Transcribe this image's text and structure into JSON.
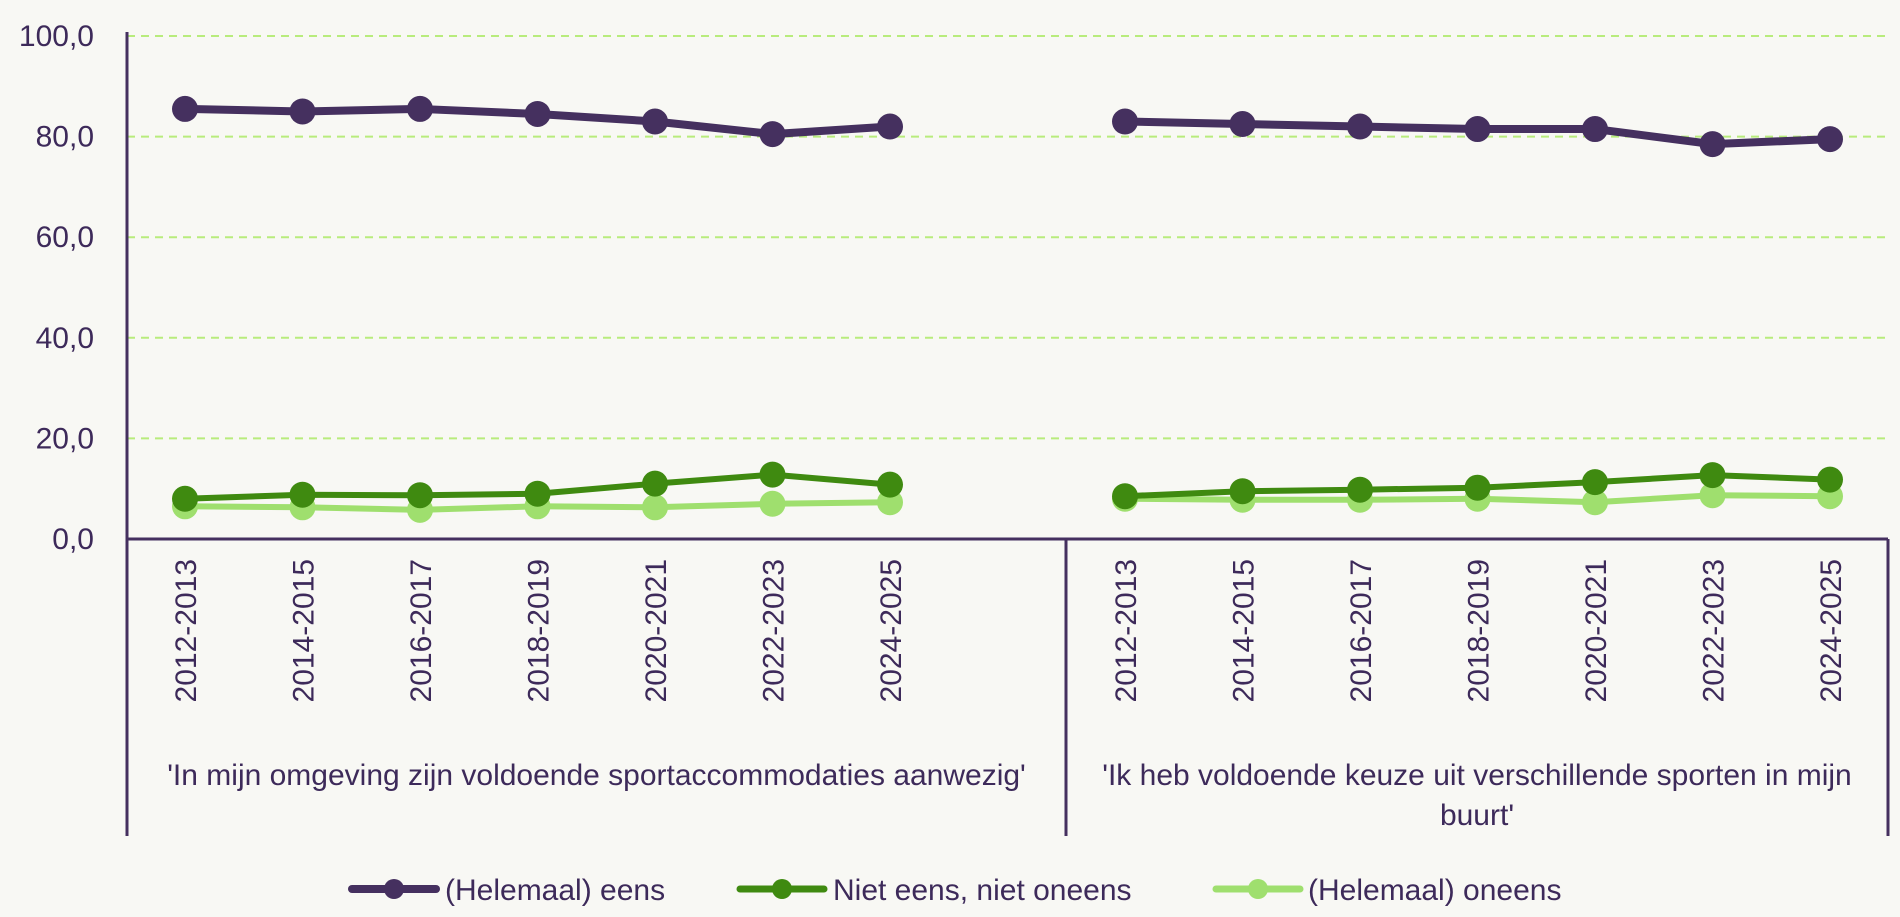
{
  "chart_data": {
    "type": "line",
    "y_axis": {
      "ylim": [
        0,
        100
      ],
      "ticks": [
        0,
        20,
        40,
        60,
        80,
        100
      ],
      "tick_labels": [
        "0,0",
        "20,0",
        "40,0",
        "60,0",
        "80,0",
        "100,0"
      ],
      "grid": true
    },
    "groups": [
      {
        "label": "'In mijn omgeving zijn voldoende sportaccommodaties aanwezig'",
        "label_lines": [
          "'In mijn omgeving zijn voldoende sportaccommodaties aanwezig'"
        ],
        "categories": [
          "2012-2013",
          "2014-2015",
          "2016-2017",
          "2018-2019",
          "2020-2021",
          "2022-2023",
          "2024-2025"
        ],
        "series": [
          {
            "name": "(Helemaal) eens",
            "values": [
              85.5,
              85.0,
              85.5,
              84.5,
              83.0,
              80.5,
              82.0
            ]
          },
          {
            "name": "Niet eens, niet oneens",
            "values": [
              8.0,
              8.8,
              8.7,
              9.0,
              11.0,
              12.8,
              10.8
            ]
          },
          {
            "name": "(Helemaal) oneens",
            "values": [
              6.5,
              6.3,
              5.8,
              6.5,
              6.3,
              7.0,
              7.3
            ]
          }
        ]
      },
      {
        "label": "'Ik heb voldoende keuze uit verschillende sporten in mijn buurt'",
        "label_lines": [
          "'Ik heb voldoende keuze uit verschillende sporten in mijn",
          "buurt'"
        ],
        "categories": [
          "2012-2013",
          "2014-2015",
          "2016-2017",
          "2018-2019",
          "2020-2021",
          "2022-2023",
          "2024-2025"
        ],
        "series": [
          {
            "name": "(Helemaal) eens",
            "values": [
              83.0,
              82.5,
              82.0,
              81.5,
              81.5,
              78.5,
              79.5
            ]
          },
          {
            "name": "Niet eens, niet oneens",
            "values": [
              8.5,
              9.5,
              9.8,
              10.2,
              11.3,
              12.7,
              11.8
            ]
          },
          {
            "name": "(Helemaal) oneens",
            "values": [
              8.0,
              7.8,
              7.8,
              8.0,
              7.3,
              8.7,
              8.5
            ]
          }
        ]
      }
    ],
    "legend": {
      "placement": "bottom",
      "entries": [
        "(Helemaal) eens",
        "Niet eens, niet oneens",
        "(Helemaal) oneens"
      ]
    },
    "colors": {
      "(Helemaal) eens": "#45305f",
      "Niet eens, niet oneens": "#3f8a10",
      "(Helemaal) oneens": "#9fdf6e",
      "axis": "#45305f",
      "grid": "#b8ec7c",
      "background": "#f8f8f4"
    }
  }
}
